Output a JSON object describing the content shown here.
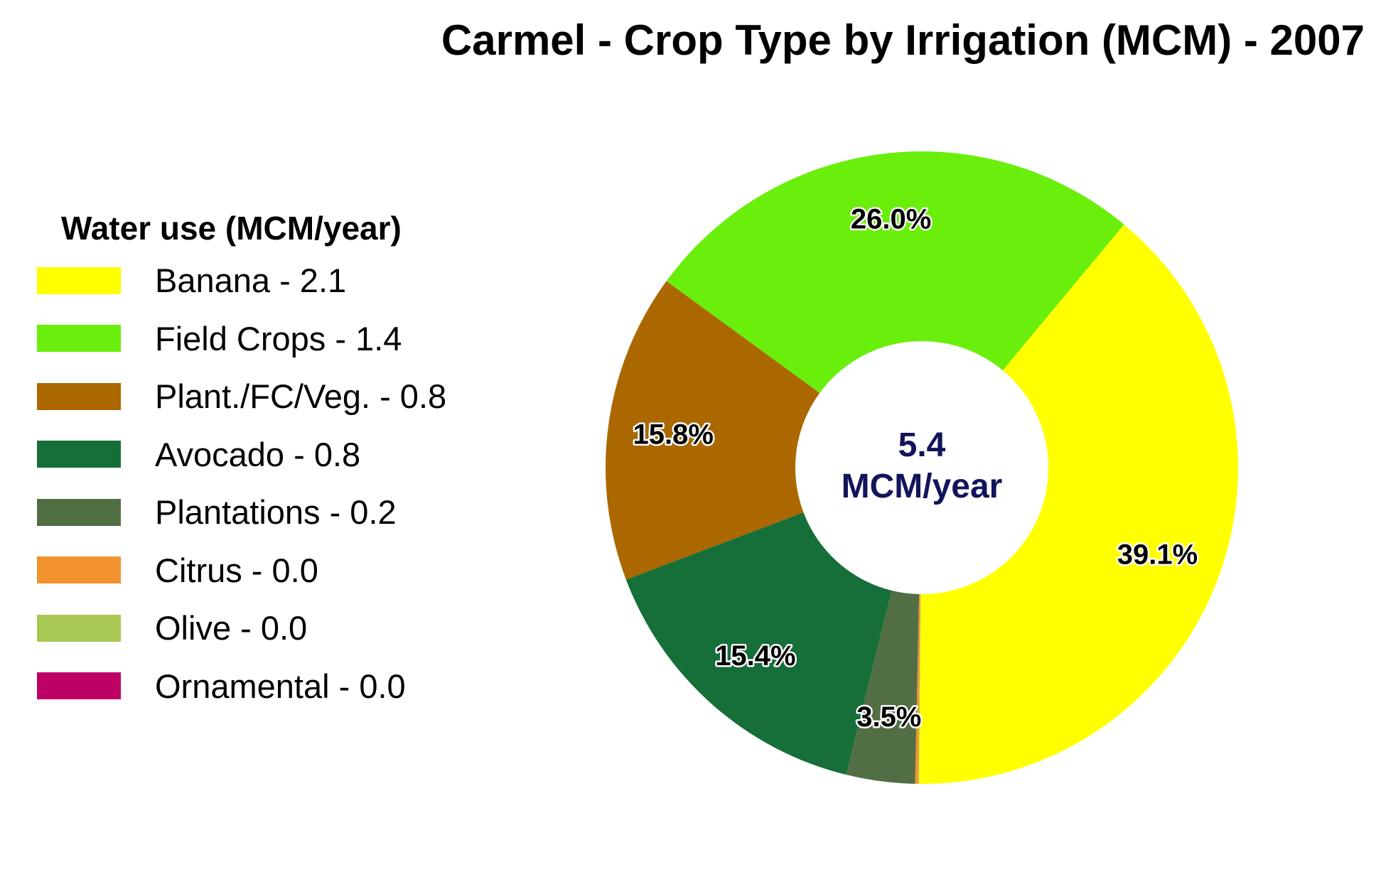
{
  "chart_data": {
    "type": "pie",
    "variant": "donut",
    "title": "Carmel - Crop Type by Irrigation (MCM) - 2007",
    "legend_title": "Water use (MCM/year)",
    "legend_position": "left",
    "center_text": [
      "5.4",
      "MCM/year"
    ],
    "slices": [
      {
        "legend_label": "Banana - 2.1",
        "percent": 39.1,
        "data_label": "39.1%",
        "color": "#ffff00"
      },
      {
        "legend_label": "Field Crops - 1.4",
        "percent": 26.0,
        "data_label": "26.0%",
        "color": "#6aee0c"
      },
      {
        "legend_label": "Plant./FC/Veg. - 0.8",
        "percent": 15.8,
        "data_label": "15.8%",
        "color": "#ab6800"
      },
      {
        "legend_label": "Avocado - 0.8",
        "percent": 15.4,
        "data_label": "15.4%",
        "color": "#166e38"
      },
      {
        "legend_label": "Plantations - 0.2",
        "percent": 3.5,
        "data_label": "3.5%",
        "color": "#516e44"
      },
      {
        "legend_label": "Citrus - 0.0",
        "percent": 0.15,
        "data_label": "",
        "color": "#f2922f"
      },
      {
        "legend_label": "Olive - 0.0",
        "percent": 0.05,
        "data_label": "",
        "color": "#a8c853"
      },
      {
        "legend_label": "Ornamental - 0.0",
        "percent": 0.0,
        "data_label": "",
        "color": "#bd0064"
      }
    ]
  }
}
